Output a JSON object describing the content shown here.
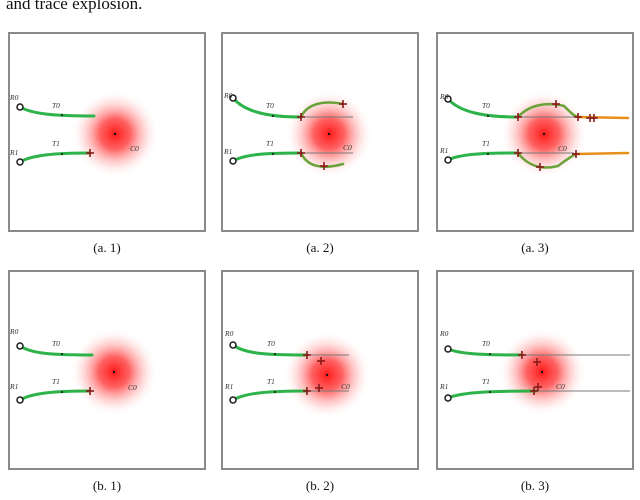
{
  "header_text": "and trace explosion.",
  "colors": {
    "trajectory": "#2db34a",
    "branch_orange": "#e8901c",
    "cross": "#8b1a1a",
    "field": "#ff1a1a",
    "frame": "#8a8a8a",
    "ghost_line": "#7a7a7a",
    "anchor_dot": "#1b1b1b"
  },
  "panels": [
    {
      "caption": "(a. 1)",
      "r_top": "R0",
      "r_bot": "R1",
      "t_top": "T0",
      "t_bot": "T1",
      "c_label": "C0"
    },
    {
      "caption": "(a. 2)",
      "r_top": "R0",
      "r_bot": "R1",
      "t_top": "T0",
      "t_bot": "T1",
      "c_label": "C0"
    },
    {
      "caption": "(a. 3)",
      "r_top": "R0",
      "r_bot": "R1",
      "t_top": "T0",
      "t_bot": "T1",
      "c_label": "C0"
    },
    {
      "caption": "(b. 1)",
      "r_top": "R0",
      "r_bot": "R1",
      "t_top": "T0",
      "t_bot": "T1",
      "c_label": "C0"
    },
    {
      "caption": "(b. 2)",
      "r_top": "R0",
      "r_bot": "R1",
      "t_top": "T0",
      "t_bot": "T1",
      "c_label": "C0"
    },
    {
      "caption": "(b. 3)",
      "r_top": "R0",
      "r_bot": "R1",
      "t_top": "T0",
      "t_bot": "T1",
      "c_label": "C0"
    }
  ]
}
